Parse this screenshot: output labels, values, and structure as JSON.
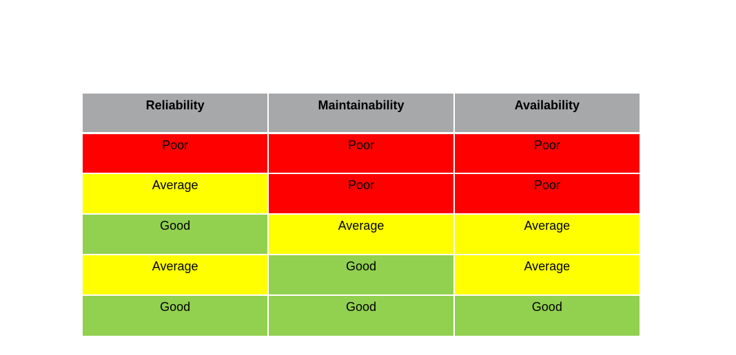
{
  "table": {
    "headers": [
      "Reliability",
      "Maintainability",
      "Availability"
    ],
    "rows": [
      [
        "Poor",
        "Poor",
        "Poor"
      ],
      [
        "Average",
        "Poor",
        "Poor"
      ],
      [
        "Good",
        "Average",
        "Average"
      ],
      [
        "Average",
        "Good",
        "Average"
      ],
      [
        "Good",
        "Good",
        "Good"
      ]
    ]
  },
  "colors": {
    "header": "#a6a8aa",
    "Poor": "#ff0000",
    "Average": "#ffff00",
    "Good": "#92d050"
  }
}
